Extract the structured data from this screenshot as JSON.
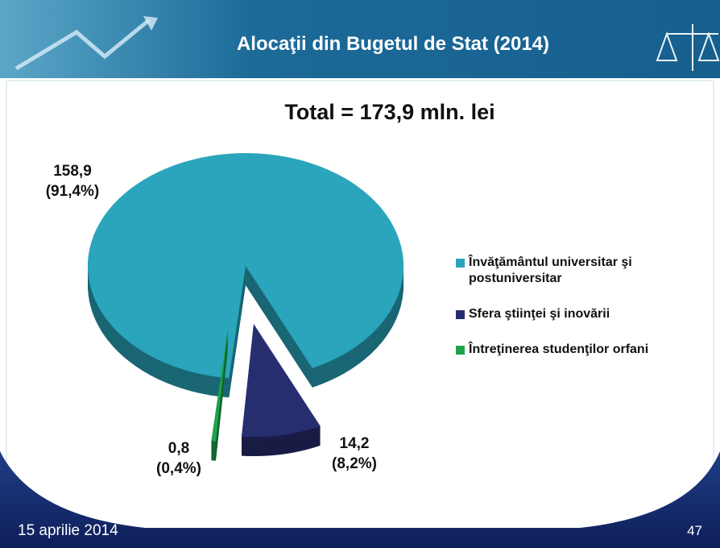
{
  "header": {
    "title": "Alocaţii din Bugetul de Stat (2014)"
  },
  "chart_data": {
    "type": "pie",
    "title": "Total = 173,9 mln. lei",
    "categories": [
      "Învăţământul universitar şi postuniversitar",
      "Sfera ştiinţei şi inovării",
      "Întreţinerea studenţilor orfani"
    ],
    "values": [
      158.9,
      14.2,
      0.8
    ],
    "value_labels": [
      "158,9",
      "14,2",
      "0,8"
    ],
    "percents": [
      91.4,
      8.2,
      0.4
    ],
    "percent_labels": [
      "(91,4%)",
      "(8,2%)",
      "(0,4%)"
    ],
    "colors": [
      "#2aa5bb",
      "#272e70",
      "#1ea34c"
    ]
  },
  "footer": {
    "date": "15 aprilie 2014",
    "page": "47"
  }
}
